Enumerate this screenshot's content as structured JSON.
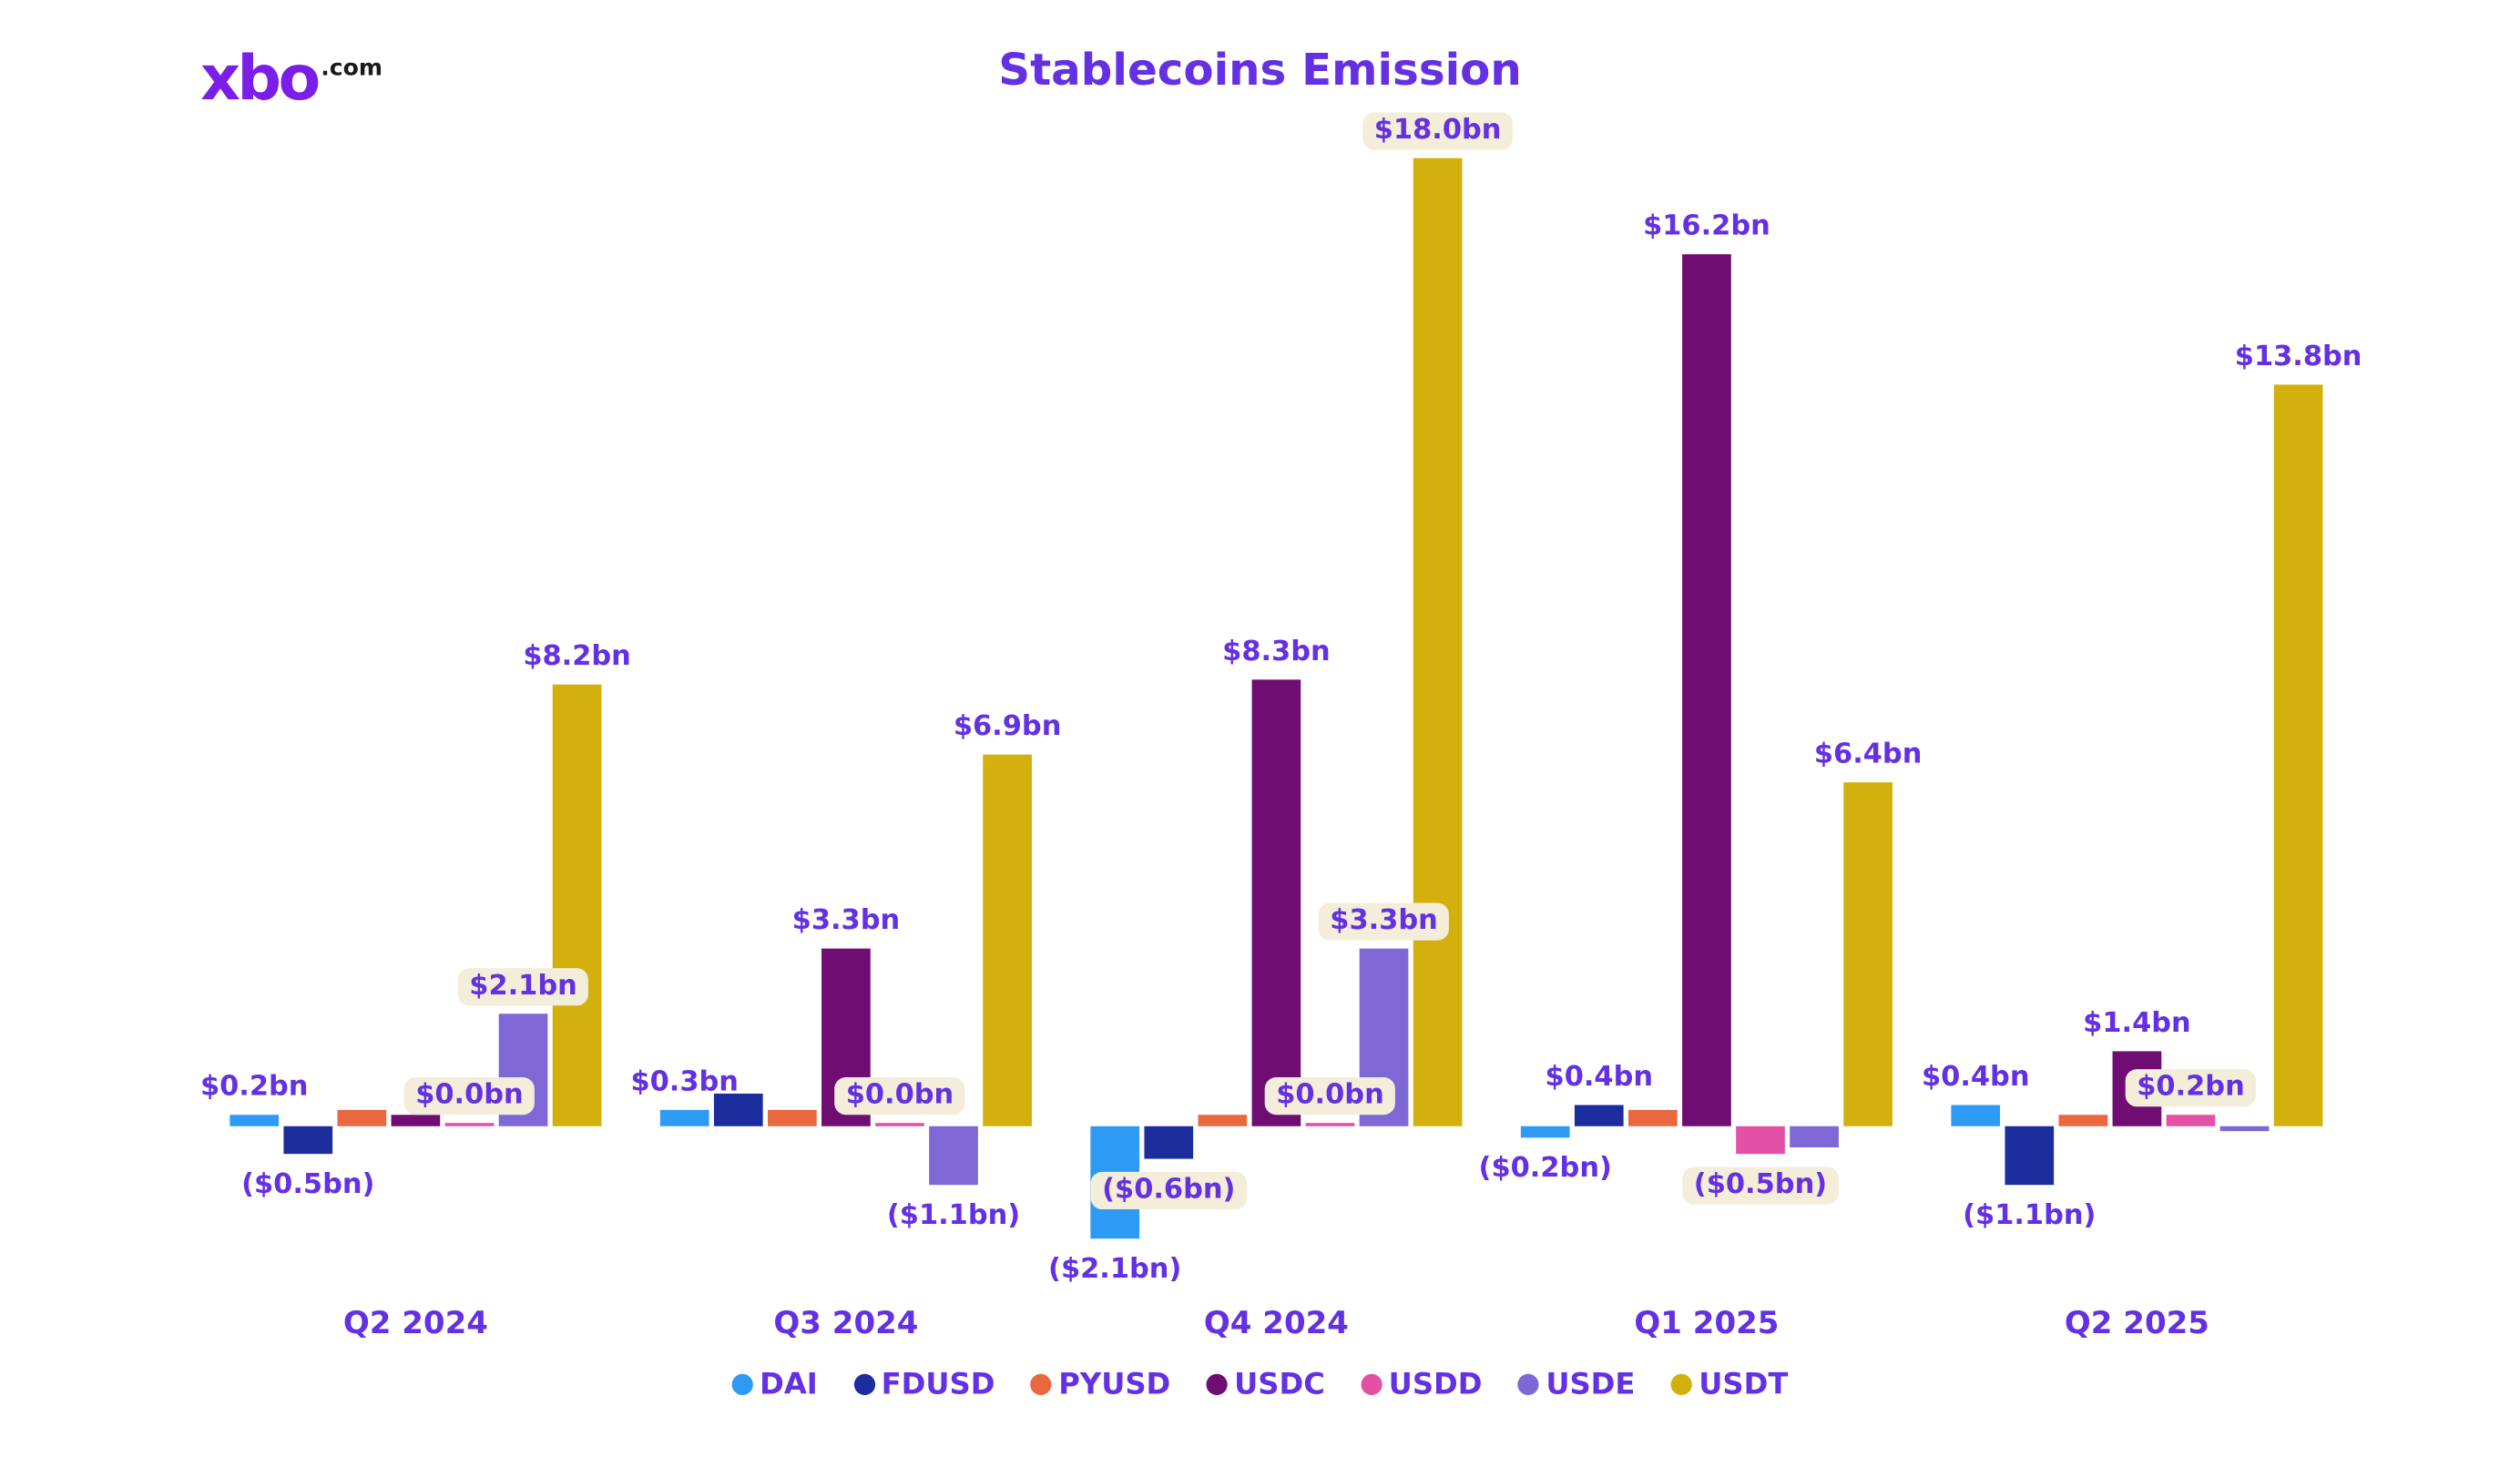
{
  "page": {
    "background": "#ffffff",
    "accent_color": "#6330e4"
  },
  "logo": {
    "text": "xbo",
    "suffix": ".com",
    "color": "#7a1ee8",
    "suffix_color": "#1a1a1a"
  },
  "chart_data": {
    "type": "bar",
    "title": "Stablecoins Emission",
    "unit": "$bn",
    "grid": false,
    "legend_position": "bottom",
    "xlabel": "",
    "ylabel": "",
    "ylim": [
      -2.5,
      18.5
    ],
    "value_label_pill_background": "#f3edd9",
    "categories": [
      "Q2 2024",
      "Q3 2024",
      "Q4 2024",
      "Q1 2025",
      "Q2 2025"
    ],
    "series": [
      {
        "name": "DAI",
        "color": "#2d9bf4",
        "values": [
          0.2,
          0.3,
          -2.1,
          -0.2,
          0.4
        ],
        "labels": [
          "$0.2bn",
          "$0.3bn",
          "($2.1bn)",
          "($0.2bn)",
          "$0.4bn"
        ],
        "pills": [
          false,
          false,
          false,
          false,
          false
        ]
      },
      {
        "name": "FDUSD",
        "color": "#1c2d9e",
        "values": [
          -0.5,
          0.6,
          -0.6,
          0.4,
          -1.1
        ],
        "labels": [
          "($0.5bn)",
          null,
          "($0.6bn)",
          "$0.4bn",
          "($1.1bn)"
        ],
        "pills": [
          false,
          false,
          true,
          false,
          false
        ]
      },
      {
        "name": "PYUSD",
        "color": "#e9683f",
        "values": [
          0.3,
          0.3,
          0.2,
          0.3,
          0.2
        ],
        "labels": [
          null,
          null,
          null,
          null,
          null
        ],
        "pills": [
          false,
          false,
          false,
          false,
          false
        ]
      },
      {
        "name": "USDC",
        "color": "#700d73",
        "values": [
          0.2,
          3.3,
          8.3,
          16.2,
          1.4
        ],
        "labels": [
          null,
          "$3.3bn",
          "$8.3bn",
          "$16.2bn",
          "$1.4bn"
        ],
        "pills": [
          false,
          false,
          false,
          false,
          false
        ]
      },
      {
        "name": "USDD",
        "color": "#e351a5",
        "values": [
          0.0,
          0.0,
          0.0,
          -0.5,
          0.2
        ],
        "labels": [
          "$0.0bn",
          "$0.0bn",
          "$0.0bn",
          "($0.5bn)",
          "$0.2bn"
        ],
        "pills": [
          true,
          true,
          true,
          true,
          true
        ]
      },
      {
        "name": "USDE",
        "color": "#7d68d6",
        "values": [
          2.1,
          -1.1,
          3.3,
          -0.4,
          -0.1
        ],
        "labels": [
          "$2.1bn",
          "($1.1bn)",
          "$3.3bn",
          null,
          null
        ],
        "pills": [
          true,
          false,
          true,
          false,
          false
        ]
      },
      {
        "name": "USDT",
        "color": "#d3b00c",
        "values": [
          8.2,
          6.9,
          18.0,
          6.4,
          13.8
        ],
        "labels": [
          "$8.2bn",
          "$6.9bn",
          "$18.0bn",
          "$6.4bn",
          "$13.8bn"
        ],
        "pills": [
          false,
          false,
          true,
          false,
          false
        ]
      }
    ]
  }
}
